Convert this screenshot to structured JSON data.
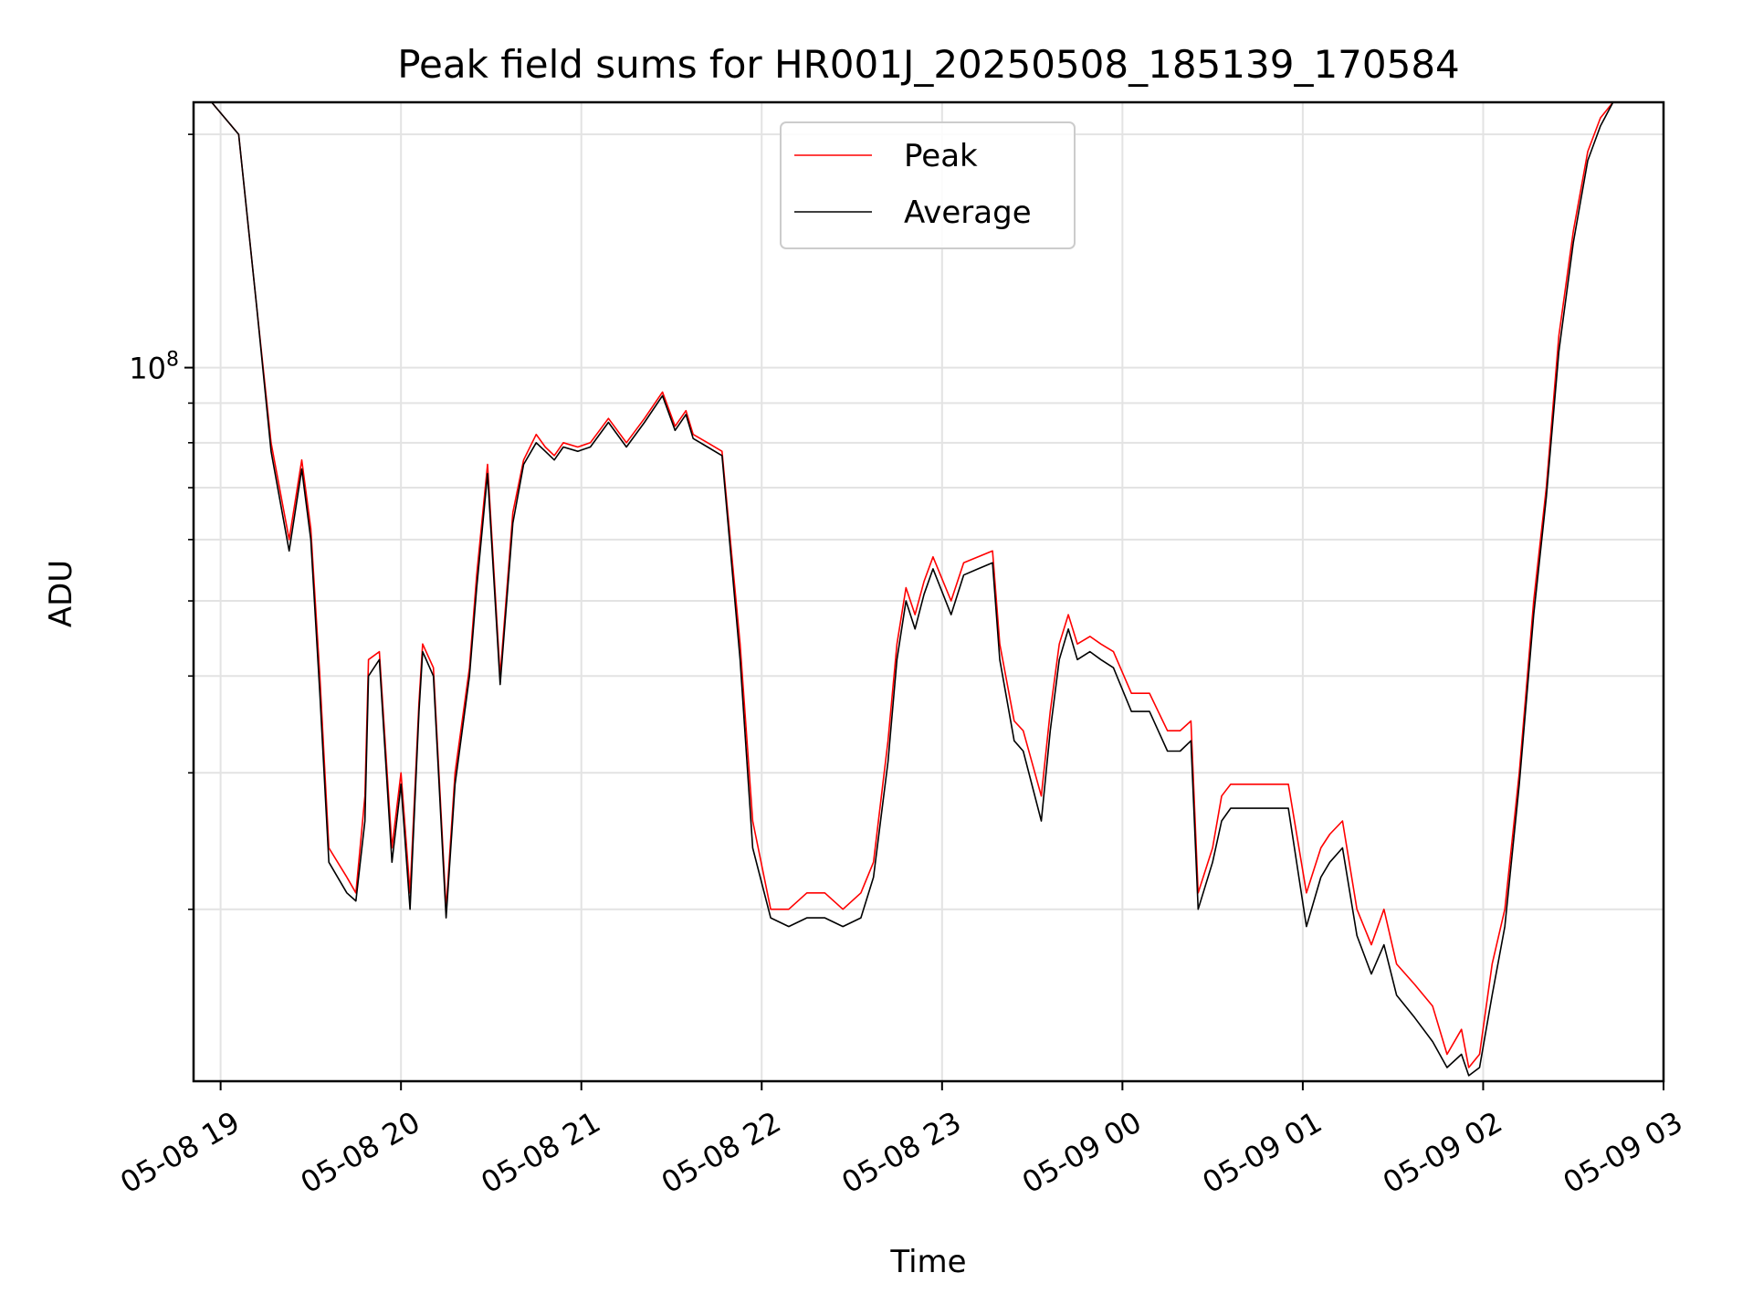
{
  "chart_data": {
    "type": "line",
    "title": "Peak field sums for HR001J_20250508_185139_170584",
    "xlabel": "Time",
    "ylabel": "ADU",
    "yscale": "log",
    "ylim": [
      12000000,
      220000000
    ],
    "y_major_tick_label_base": "10",
    "y_major_tick_label_exp": "8",
    "y_major_tick_value": 100000000,
    "y_minor_ticks": [
      20000000,
      30000000,
      40000000,
      50000000,
      60000000,
      70000000,
      80000000,
      90000000,
      200000000
    ],
    "x_unit": "hours since 05-08 19:00",
    "xlim": [
      -0.15,
      8.0
    ],
    "x_ticks": [
      0,
      1,
      2,
      3,
      4,
      5,
      6,
      7,
      8
    ],
    "x_tick_labels": [
      "05-08 19",
      "05-08 20",
      "05-08 21",
      "05-08 22",
      "05-08 23",
      "05-09 00",
      "05-09 01",
      "05-09 02",
      "05-09 03"
    ],
    "grid": true,
    "legend": {
      "position": "top-center",
      "entries": [
        "Peak",
        "Average"
      ]
    },
    "series": [
      {
        "name": "Peak",
        "color": "#ff0000",
        "x": [
          -0.05,
          0.1,
          0.2,
          0.28,
          0.38,
          0.45,
          0.5,
          0.55,
          0.6,
          0.7,
          0.75,
          0.8,
          0.82,
          0.88,
          0.95,
          1.0,
          1.05,
          1.1,
          1.12,
          1.18,
          1.25,
          1.3,
          1.38,
          1.42,
          1.48,
          1.55,
          1.62,
          1.68,
          1.75,
          1.8,
          1.85,
          1.9,
          1.98,
          2.05,
          2.15,
          2.25,
          2.35,
          2.45,
          2.52,
          2.58,
          2.62,
          2.7,
          2.78,
          2.88,
          2.95,
          3.05,
          3.15,
          3.25,
          3.35,
          3.45,
          3.55,
          3.62,
          3.7,
          3.75,
          3.8,
          3.85,
          3.9,
          3.95,
          4.05,
          4.12,
          4.2,
          4.28,
          4.32,
          4.4,
          4.45,
          4.55,
          4.6,
          4.65,
          4.7,
          4.75,
          4.82,
          4.88,
          4.95,
          5.05,
          5.15,
          5.25,
          5.32,
          5.38,
          5.42,
          5.5,
          5.55,
          5.6,
          5.7,
          5.82,
          5.92,
          6.02,
          6.1,
          6.15,
          6.22,
          6.3,
          6.38,
          6.45,
          6.52,
          6.62,
          6.72,
          6.8,
          6.88,
          6.92,
          6.98,
          7.05,
          7.12,
          7.2,
          7.28,
          7.35,
          7.42,
          7.5,
          7.58,
          7.65,
          7.72,
          7.8,
          7.85,
          7.92
        ],
        "y": [
          220000000,
          200000000,
          120000000,
          80000000,
          60000000,
          76000000,
          62000000,
          40000000,
          24000000,
          22000000,
          21000000,
          28000000,
          42000000,
          43000000,
          24000000,
          30000000,
          21000000,
          37000000,
          44000000,
          41000000,
          20000000,
          30000000,
          41000000,
          54000000,
          75000000,
          40000000,
          65000000,
          76000000,
          82000000,
          79000000,
          77000000,
          80000000,
          79000000,
          80000000,
          86000000,
          80000000,
          86000000,
          93000000,
          84000000,
          88000000,
          82000000,
          80000000,
          78000000,
          44000000,
          26000000,
          20000000,
          20000000,
          21000000,
          21000000,
          20000000,
          21000000,
          23000000,
          33000000,
          44000000,
          52000000,
          48000000,
          53000000,
          57000000,
          50000000,
          56000000,
          57000000,
          58000000,
          44000000,
          35000000,
          34000000,
          28000000,
          36000000,
          44000000,
          48000000,
          44000000,
          45000000,
          44000000,
          43000000,
          38000000,
          38000000,
          34000000,
          34000000,
          35000000,
          21000000,
          24000000,
          28000000,
          29000000,
          29000000,
          29000000,
          29000000,
          21000000,
          24000000,
          25000000,
          26000000,
          20000000,
          18000000,
          20000000,
          17000000,
          16000000,
          15000000,
          13000000,
          14000000,
          12500000,
          13000000,
          17000000,
          20000000,
          30000000,
          50000000,
          70000000,
          110000000,
          150000000,
          190000000,
          210000000,
          220000000,
          220000000,
          220000000,
          220000000
        ]
      },
      {
        "name": "Average",
        "color": "#000000",
        "x": [
          -0.05,
          0.1,
          0.2,
          0.28,
          0.38,
          0.45,
          0.5,
          0.55,
          0.6,
          0.7,
          0.75,
          0.8,
          0.82,
          0.88,
          0.95,
          1.0,
          1.05,
          1.1,
          1.12,
          1.18,
          1.25,
          1.3,
          1.38,
          1.42,
          1.48,
          1.55,
          1.62,
          1.68,
          1.75,
          1.8,
          1.85,
          1.9,
          1.98,
          2.05,
          2.15,
          2.25,
          2.35,
          2.45,
          2.52,
          2.58,
          2.62,
          2.7,
          2.78,
          2.88,
          2.95,
          3.05,
          3.15,
          3.25,
          3.35,
          3.45,
          3.55,
          3.62,
          3.7,
          3.75,
          3.8,
          3.85,
          3.9,
          3.95,
          4.05,
          4.12,
          4.2,
          4.28,
          4.32,
          4.4,
          4.45,
          4.55,
          4.6,
          4.65,
          4.7,
          4.75,
          4.82,
          4.88,
          4.95,
          5.05,
          5.15,
          5.25,
          5.32,
          5.38,
          5.42,
          5.5,
          5.55,
          5.6,
          5.7,
          5.82,
          5.92,
          6.02,
          6.1,
          6.15,
          6.22,
          6.3,
          6.38,
          6.45,
          6.52,
          6.62,
          6.72,
          6.8,
          6.88,
          6.92,
          6.98,
          7.05,
          7.12,
          7.2,
          7.28,
          7.35,
          7.42,
          7.5,
          7.58,
          7.65,
          7.72,
          7.8,
          7.85,
          7.92
        ],
        "y": [
          220000000,
          200000000,
          120000000,
          78000000,
          58000000,
          74000000,
          60000000,
          38000000,
          23000000,
          21000000,
          20500000,
          26000000,
          40000000,
          42000000,
          23000000,
          29000000,
          20000000,
          36000000,
          43000000,
          40000000,
          19500000,
          29000000,
          40000000,
          52000000,
          73000000,
          39000000,
          63000000,
          75000000,
          80000000,
          78000000,
          76000000,
          79000000,
          78000000,
          79000000,
          85000000,
          79000000,
          85000000,
          92000000,
          83000000,
          87000000,
          81000000,
          79000000,
          77000000,
          42000000,
          24000000,
          19500000,
          19000000,
          19500000,
          19500000,
          19000000,
          19500000,
          22000000,
          31000000,
          42000000,
          50000000,
          46000000,
          51000000,
          55000000,
          48000000,
          54000000,
          55000000,
          56000000,
          42000000,
          33000000,
          32000000,
          26000000,
          34000000,
          42000000,
          46000000,
          42000000,
          43000000,
          42000000,
          41000000,
          36000000,
          36000000,
          32000000,
          32000000,
          33000000,
          20000000,
          23000000,
          26000000,
          27000000,
          27000000,
          27000000,
          27000000,
          19000000,
          22000000,
          23000000,
          24000000,
          18500000,
          16500000,
          18000000,
          15500000,
          14500000,
          13500000,
          12500000,
          13000000,
          12200000,
          12500000,
          15500000,
          19000000,
          29000000,
          48000000,
          68000000,
          105000000,
          145000000,
          185000000,
          205000000,
          220000000,
          220000000,
          220000000,
          220000000
        ]
      }
    ]
  }
}
